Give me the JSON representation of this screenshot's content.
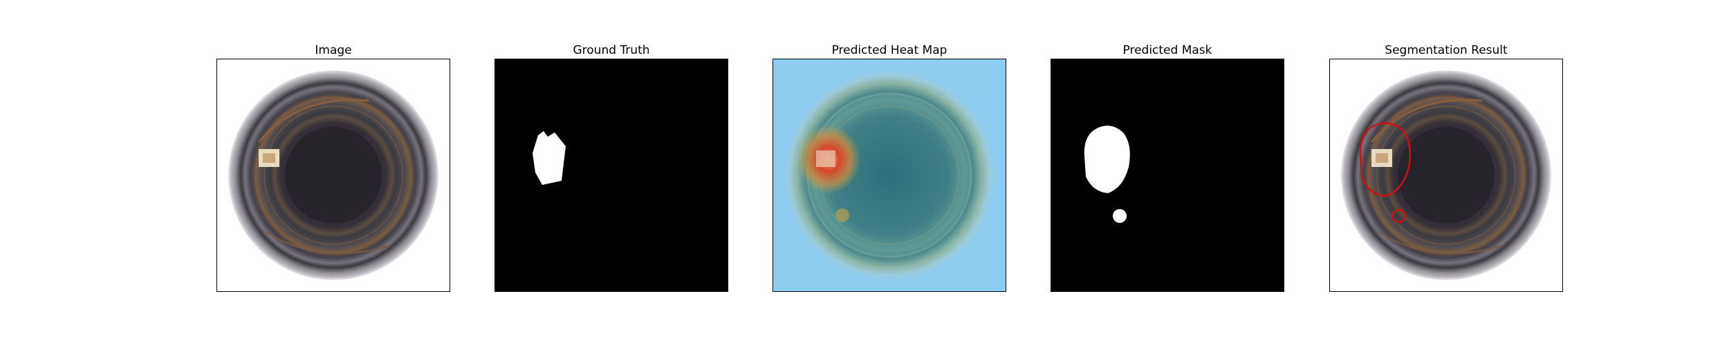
{
  "figure": {
    "panels": [
      {
        "title": "Image"
      },
      {
        "title": "Ground Truth"
      },
      {
        "title": "Predicted Heat Map"
      },
      {
        "title": "Predicted Mask"
      },
      {
        "title": "Segmentation Result"
      }
    ]
  },
  "colors": {
    "mask_background": "#000000",
    "mask_foreground": "#ffffff",
    "heatmap_cold": "#8fcdf0",
    "heatmap_hot": "#d9452b",
    "contour": "#d01010"
  }
}
